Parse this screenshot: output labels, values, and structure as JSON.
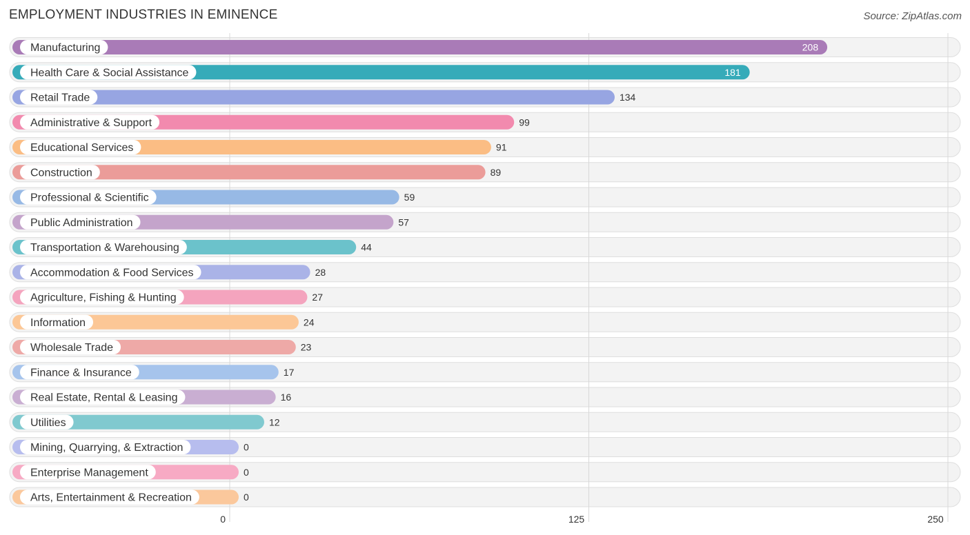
{
  "chart_data": {
    "type": "bar",
    "orientation": "horizontal",
    "title": "EMPLOYMENT INDUSTRIES IN EMINENCE",
    "source": "Source: ZipAtlas.com",
    "xlim": [
      0,
      250
    ],
    "ticks": [
      0,
      125,
      250
    ],
    "tick_labels": [
      "0",
      "125",
      "250"
    ],
    "categories": [
      "Manufacturing",
      "Health Care & Social Assistance",
      "Retail Trade",
      "Administrative & Support",
      "Educational Services",
      "Construction",
      "Professional & Scientific",
      "Public Administration",
      "Transportation & Warehousing",
      "Accommodation & Food Services",
      "Agriculture, Fishing & Hunting",
      "Information",
      "Wholesale Trade",
      "Finance & Insurance",
      "Real Estate, Rental & Leasing",
      "Utilities",
      "Mining, Quarrying, & Extraction",
      "Enterprise Management",
      "Arts, Entertainment & Recreation"
    ],
    "values": [
      208,
      181,
      134,
      99,
      91,
      89,
      59,
      57,
      44,
      28,
      27,
      24,
      23,
      17,
      16,
      12,
      0,
      0,
      0
    ],
    "colors": [
      "#a97bb7",
      "#36abb9",
      "#97a5e2",
      "#f28aae",
      "#fbbd84",
      "#eb9c99",
      "#97b9e5",
      "#c4a4cb",
      "#6bc2cb",
      "#aab3e7",
      "#f4a4be",
      "#fcc796",
      "#eea9a7",
      "#a6c4ec",
      "#c9aed2",
      "#80c9cf",
      "#b7bdee",
      "#f7aac4",
      "#fbc89c"
    ]
  }
}
